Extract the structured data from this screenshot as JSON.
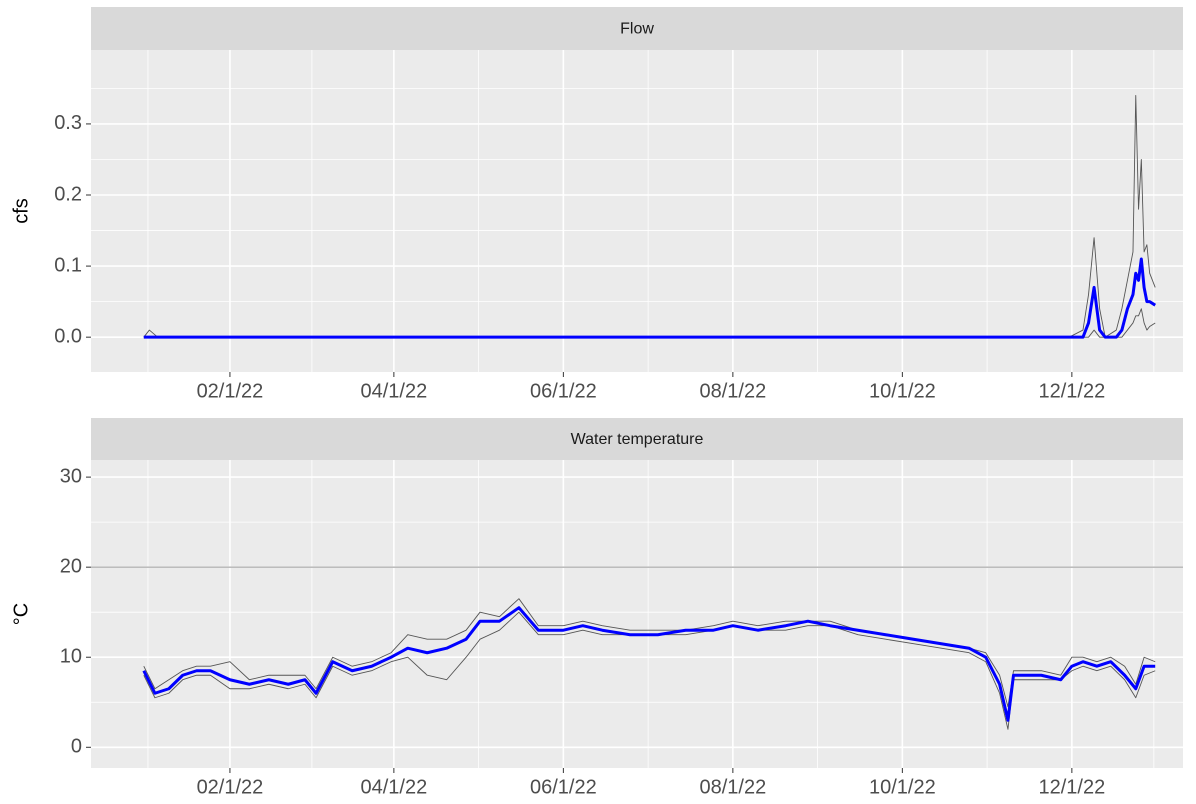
{
  "chart_data": [
    {
      "type": "line",
      "title": "Flow",
      "y_label": "cfs",
      "xlim": [
        "2021-12-13",
        "2023-01-10"
      ],
      "xticks": [
        {
          "value": "2022-02-01",
          "label": "02/1/22"
        },
        {
          "value": "2022-04-01",
          "label": "04/1/22"
        },
        {
          "value": "2022-06-01",
          "label": "06/1/22"
        },
        {
          "value": "2022-08-01",
          "label": "08/1/22"
        },
        {
          "value": "2022-10-01",
          "label": "10/1/22"
        },
        {
          "value": "2022-12-01",
          "label": "12/1/22"
        }
      ],
      "ylim": [
        -0.049,
        0.404
      ],
      "yticks": [
        {
          "value": 0,
          "label": "0.0"
        },
        {
          "value": 0.1,
          "label": "0.1"
        },
        {
          "value": 0.2,
          "label": "0.2"
        },
        {
          "value": 0.3,
          "label": "0.3"
        }
      ],
      "grid": true,
      "x": [
        "2022-01-01",
        "2022-01-03",
        "2022-01-06",
        "2022-11-30",
        "2022-12-05",
        "2022-12-07",
        "2022-12-09",
        "2022-12-11",
        "2022-12-13",
        "2022-12-17",
        "2022-12-19",
        "2022-12-21",
        "2022-12-23",
        "2022-12-24",
        "2022-12-25",
        "2022-12-26",
        "2022-12-27",
        "2022-12-28",
        "2022-12-29",
        "2022-12-31"
      ],
      "series": [
        {
          "color": "#555555",
          "values": [
            0,
            0.01,
            0,
            0,
            0.01,
            0.06,
            0.14,
            0.04,
            0,
            0.01,
            0.04,
            0.08,
            0.12,
            0.34,
            0.18,
            0.25,
            0.12,
            0.13,
            0.09,
            0.07
          ]
        },
        {
          "color": "#555555",
          "values": [
            0,
            0,
            0,
            0,
            0,
            0,
            0.01,
            0,
            0,
            0,
            0,
            0.01,
            0.02,
            0.03,
            0.03,
            0.04,
            0.02,
            0.01,
            0.015,
            0.02
          ]
        },
        {
          "color": "#0000ff",
          "values": [
            0,
            0,
            0,
            0,
            0,
            0.02,
            0.07,
            0.01,
            0,
            0,
            0.01,
            0.04,
            0.06,
            0.09,
            0.08,
            0.11,
            0.07,
            0.05,
            0.05,
            0.045
          ]
        }
      ]
    },
    {
      "type": "line",
      "title": "Water temperature",
      "y_label": "°C",
      "xlim": [
        "2021-12-13",
        "2023-01-10"
      ],
      "xticks": [
        {
          "value": "2022-02-01",
          "label": "02/1/22"
        },
        {
          "value": "2022-04-01",
          "label": "04/1/22"
        },
        {
          "value": "2022-06-01",
          "label": "06/1/22"
        },
        {
          "value": "2022-08-01",
          "label": "08/1/22"
        },
        {
          "value": "2022-10-01",
          "label": "10/1/22"
        },
        {
          "value": "2022-12-01",
          "label": "12/1/22"
        }
      ],
      "ylim": [
        -2.3,
        31.9
      ],
      "yticks": [
        0,
        10,
        20,
        30
      ],
      "hlines": [
        20
      ],
      "grid": true,
      "x": [
        "2022-01-01",
        "2022-01-05",
        "2022-01-10",
        "2022-01-15",
        "2022-01-20",
        "2022-01-25",
        "2022-02-01",
        "2022-02-08",
        "2022-02-15",
        "2022-02-22",
        "2022-02-28",
        "2022-03-04",
        "2022-03-10",
        "2022-03-17",
        "2022-03-24",
        "2022-03-31",
        "2022-04-06",
        "2022-04-13",
        "2022-04-20",
        "2022-04-27",
        "2022-05-02",
        "2022-05-09",
        "2022-05-16",
        "2022-05-23",
        "2022-06-01",
        "2022-06-08",
        "2022-06-15",
        "2022-06-25",
        "2022-07-05",
        "2022-07-15",
        "2022-07-25",
        "2022-08-01",
        "2022-08-10",
        "2022-08-20",
        "2022-08-28",
        "2022-09-05",
        "2022-09-15",
        "2022-09-25",
        "2022-10-05",
        "2022-10-15",
        "2022-10-25",
        "2022-10-31",
        "2022-11-05",
        "2022-11-08",
        "2022-11-10",
        "2022-11-20",
        "2022-11-27",
        "2022-12-01",
        "2022-12-05",
        "2022-12-10",
        "2022-12-15",
        "2022-12-20",
        "2022-12-24",
        "2022-12-27",
        "2022-12-31"
      ],
      "series": [
        {
          "color": "#555555",
          "values": [
            9,
            6.5,
            7.5,
            8.5,
            9,
            9,
            9.5,
            7.5,
            8,
            8,
            8,
            6.5,
            10,
            9,
            9.5,
            10.5,
            12.5,
            12,
            12,
            13,
            15,
            14.5,
            16.5,
            13.5,
            13.5,
            14,
            13.5,
            13,
            13,
            13,
            13.5,
            14,
            13.5,
            14,
            14,
            14,
            13,
            12.5,
            12,
            11.5,
            11,
            10.5,
            8,
            4.5,
            8.5,
            8.5,
            8,
            10,
            10,
            9.5,
            10,
            9,
            7,
            10,
            9.5
          ]
        },
        {
          "color": "#555555",
          "values": [
            8,
            5.5,
            6,
            7.5,
            8,
            8,
            6.5,
            6.5,
            7,
            6.5,
            7,
            5.5,
            9,
            8,
            8.5,
            9.5,
            10,
            8,
            7.5,
            10,
            12,
            13,
            15,
            12.5,
            12.5,
            13,
            12.5,
            12.5,
            12.5,
            12.5,
            13,
            13.5,
            13,
            13,
            13.5,
            13.5,
            12.5,
            12,
            11.5,
            11,
            10.5,
            9.5,
            6,
            2,
            7.5,
            7.5,
            7.5,
            8.5,
            9,
            8.5,
            9,
            7.5,
            5.5,
            8,
            8.5
          ]
        },
        {
          "color": "#0000ff",
          "values": [
            8.5,
            6,
            6.5,
            8,
            8.5,
            8.5,
            7.5,
            7,
            7.5,
            7,
            7.5,
            6,
            9.5,
            8.5,
            9,
            10,
            11,
            10.5,
            11,
            12,
            14,
            14,
            15.5,
            13,
            13,
            13.5,
            13,
            12.5,
            12.5,
            13,
            13,
            13.5,
            13,
            13.5,
            14,
            13.5,
            13,
            12.5,
            12,
            11.5,
            11,
            10,
            7,
            3,
            8,
            8,
            7.5,
            9,
            9.5,
            9,
            9.5,
            8,
            6.5,
            9,
            9
          ]
        }
      ]
    }
  ]
}
